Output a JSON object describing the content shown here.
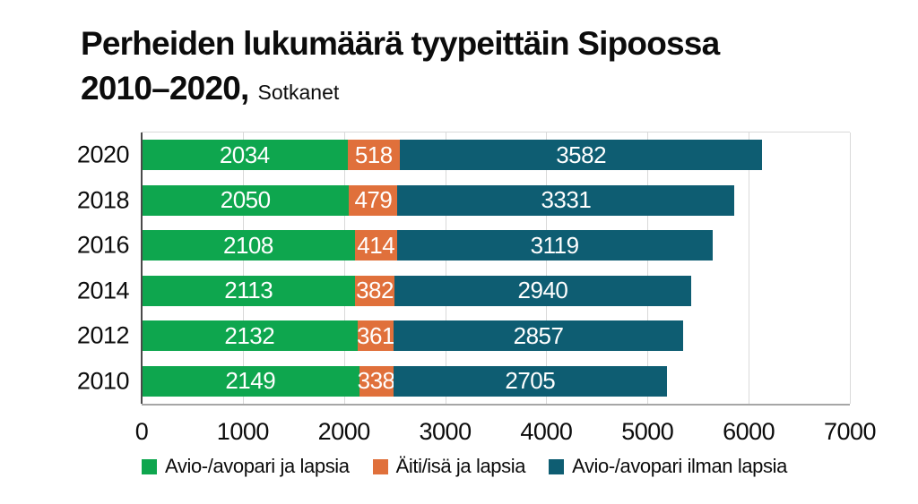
{
  "title": {
    "line1": "Perheiden lukumäärä tyypeittäin Sipoossa",
    "line2_bold": "2010–2020,",
    "line2_source": "Sotkanet"
  },
  "colors": {
    "series_green": "#0ea64e",
    "series_orange": "#e0703b",
    "series_teal": "#0e5d72",
    "axis_line": "#4a4a4a",
    "baseline": "#a6a6a6",
    "gridline": "#d9d9d9",
    "bar_value_text": "#ffffff",
    "text": "#0c0c0c",
    "background": "#ffffff"
  },
  "chart_data": {
    "type": "bar",
    "orientation": "horizontal",
    "stacked": true,
    "title": "Perheiden lukumäärä tyypeittäin Sipoossa 2010–2020, Sotkanet",
    "categories": [
      "2020",
      "2018",
      "2016",
      "2014",
      "2012",
      "2010"
    ],
    "series": [
      {
        "name": "Avio-/avopari ja lapsia",
        "color": "#0ea64e",
        "values": [
          2034,
          2050,
          2108,
          2113,
          2132,
          2149
        ]
      },
      {
        "name": "Äiti/isä ja lapsia",
        "color": "#e0703b",
        "values": [
          518,
          479,
          414,
          382,
          361,
          338
        ]
      },
      {
        "name": "Avio-/avopari ilman lapsia",
        "color": "#0e5d72",
        "values": [
          3582,
          3331,
          3119,
          2940,
          2857,
          2705
        ]
      }
    ],
    "totals": [
      6134,
      5860,
      5641,
      5435,
      5350,
      5192
    ],
    "xlim": [
      0,
      7000
    ],
    "x_ticks": [
      0,
      1000,
      2000,
      3000,
      4000,
      5000,
      6000,
      7000
    ],
    "xlabel": "",
    "ylabel": "",
    "grid": true,
    "value_labels": "inside, white, per segment",
    "legend_position": "bottom-left"
  }
}
